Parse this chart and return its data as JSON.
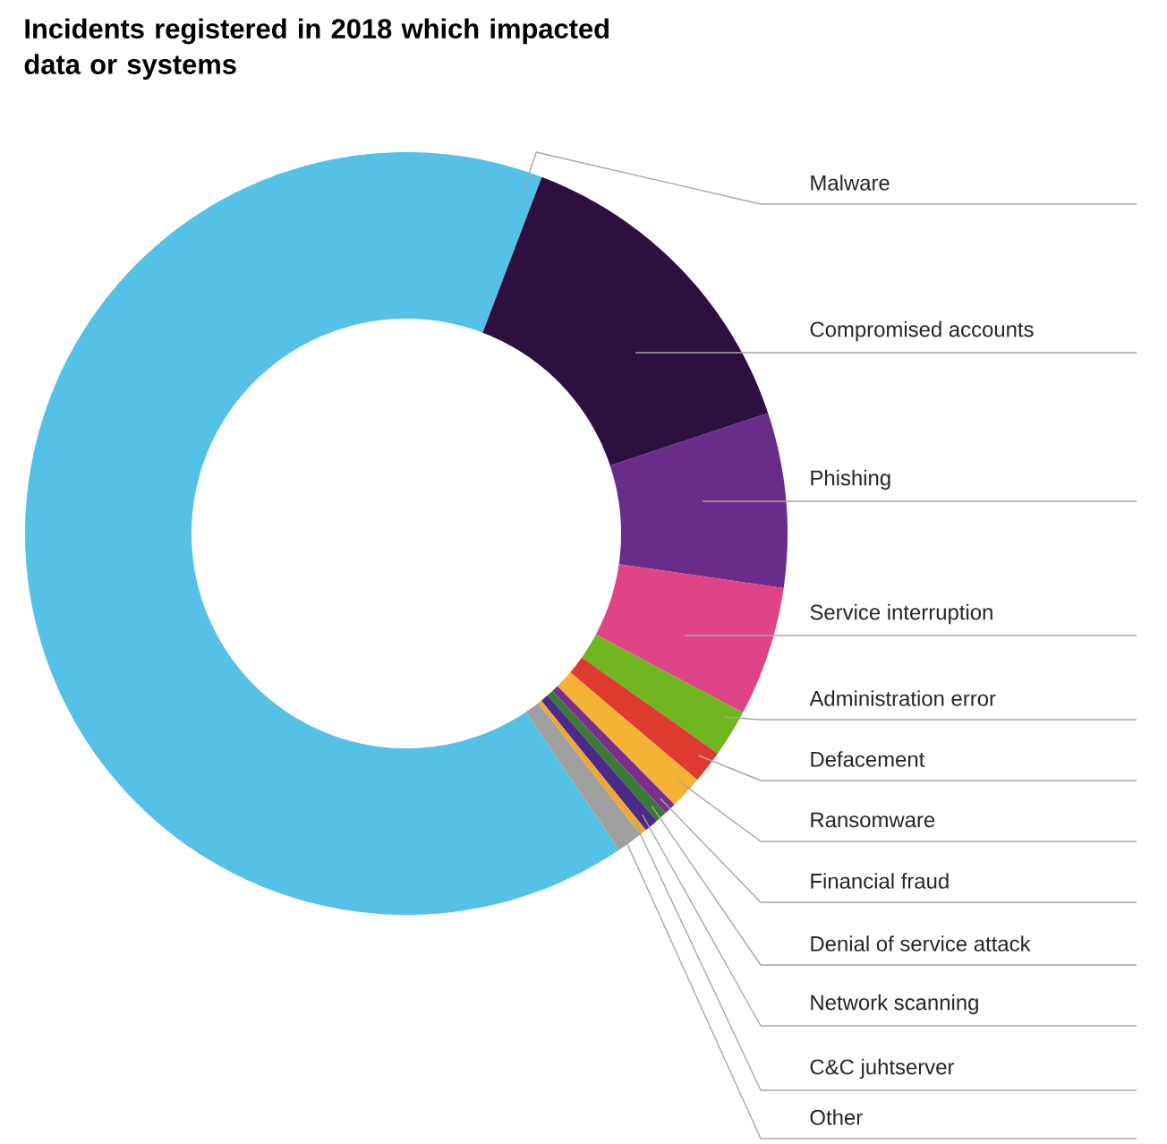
{
  "chart_data": {
    "type": "donut",
    "title": "Incidents registered in 2018 which impacted data or systems",
    "categories": [
      "Malware",
      "Compromised accounts",
      "Phishing",
      "Service interruption",
      "Administration error",
      "Defacement",
      "Ransomware",
      "Financial fraud",
      "Denial of service attack",
      "Network scanning",
      "C&C juhtserver",
      "Other"
    ],
    "values": [
      65.2,
      14.1,
      7.4,
      5.5,
      2.0,
      1.4,
      1.4,
      0.5,
      0.5,
      0.6,
      0.3,
      1.1
    ],
    "colors": [
      "#56c1e6",
      "#2d1040",
      "#6a2c8a",
      "#df4486",
      "#6fb621",
      "#de3a2f",
      "#f5b335",
      "#7b2d90",
      "#3b7a34",
      "#4b2a8a",
      "#f0a830",
      "#a0a0a0"
    ]
  }
}
